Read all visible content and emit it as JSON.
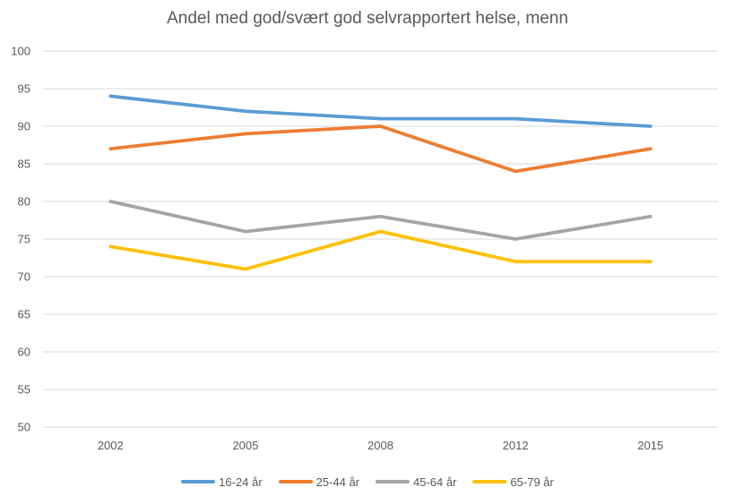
{
  "chart_data": {
    "type": "line",
    "title": "Andel med god/svært god selvrapportert helse, menn",
    "categories": [
      "2002",
      "2005",
      "2008",
      "2012",
      "2015"
    ],
    "series": [
      {
        "name": "16-24 år",
        "color": "#5B9BD5",
        "values": [
          94,
          92,
          91,
          91,
          90
        ]
      },
      {
        "name": "25-44 år",
        "color": "#ED7D31",
        "values": [
          87,
          89,
          90,
          84,
          87
        ]
      },
      {
        "name": "45-64 år",
        "color": "#A5A5A5",
        "values": [
          80,
          76,
          78,
          75,
          78
        ]
      },
      {
        "name": "65-79 år",
        "color": "#FFC000",
        "values": [
          74,
          71,
          76,
          72,
          72
        ]
      }
    ],
    "xlabel": "",
    "ylabel": "",
    "ylim": [
      50,
      100
    ],
    "yticks": [
      50,
      55,
      60,
      65,
      70,
      75,
      80,
      85,
      90,
      95,
      100
    ],
    "grid": true,
    "legend_position": "bottom"
  },
  "colors": {
    "text": "#595959",
    "gridline": "#D9D9D9",
    "background": "#FFFFFF"
  }
}
